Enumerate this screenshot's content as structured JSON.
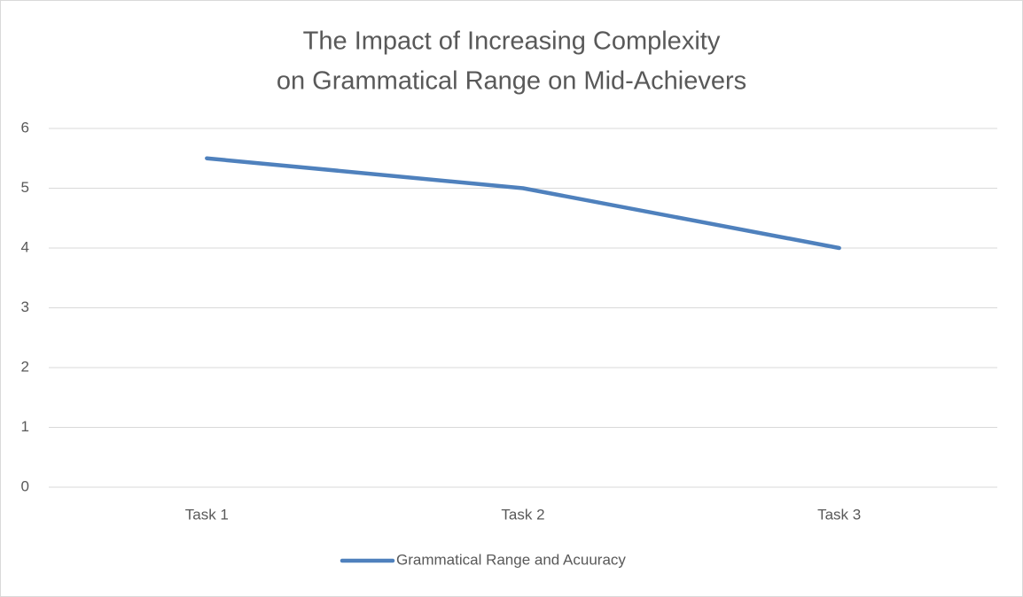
{
  "chart_data": {
    "type": "line",
    "title": [
      "The Impact of Increasing Complexity",
      "on Grammatical Range on Mid-Achievers"
    ],
    "categories": [
      "Task 1",
      "Task 2",
      "Task 3"
    ],
    "series": [
      {
        "name": "Grammatical Range and Acuuracy",
        "color": "#4f81bd",
        "values": [
          5.5,
          5,
          4
        ]
      }
    ],
    "ylim": [
      0,
      6
    ],
    "yticks": [
      0,
      1,
      2,
      3,
      4,
      5,
      6
    ],
    "grid": true,
    "legend": "bottom"
  }
}
